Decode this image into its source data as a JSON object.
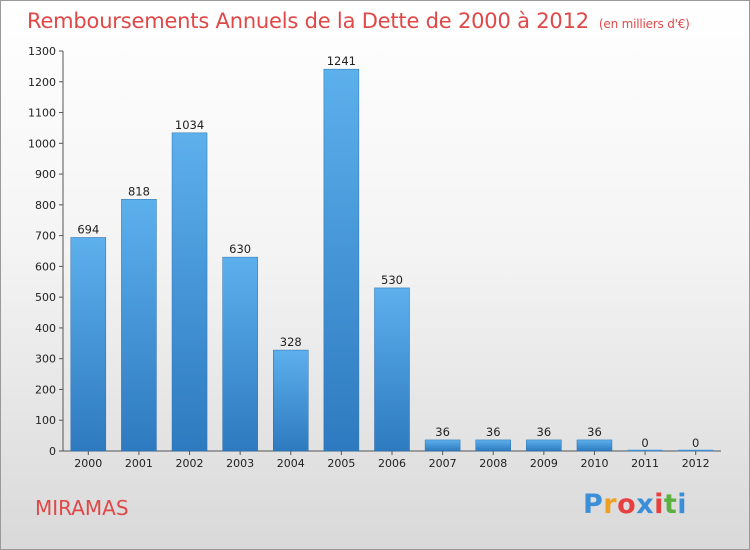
{
  "chart_data": {
    "type": "bar",
    "title": "Remboursements Annuels de la Dette de 2000 à 2012",
    "unit": "(en milliers d'€)",
    "categories": [
      "2000",
      "2001",
      "2002",
      "2003",
      "2004",
      "2005",
      "2006",
      "2007",
      "2008",
      "2009",
      "2010",
      "2011",
      "2012"
    ],
    "values": [
      694,
      818,
      1034,
      630,
      328,
      1241,
      530,
      36,
      36,
      36,
      36,
      0,
      0
    ],
    "ylim": [
      0,
      1300
    ],
    "yticks": [
      0,
      100,
      200,
      300,
      400,
      500,
      600,
      700,
      800,
      900,
      1000,
      1100,
      1200,
      1300
    ],
    "grid": false,
    "bar_color": "#3d8fd6",
    "title_color": "#e04848"
  },
  "footer": {
    "commune": "MIRAMAS"
  },
  "logo": {
    "letters": [
      "P",
      "r",
      "o",
      "x",
      "i",
      "t",
      "i"
    ],
    "colors": [
      "#3b8ed8",
      "#f0a020",
      "#e84040",
      "#3b8ed8",
      "#e84040",
      "#5cb040",
      "#3b8ed8"
    ]
  }
}
